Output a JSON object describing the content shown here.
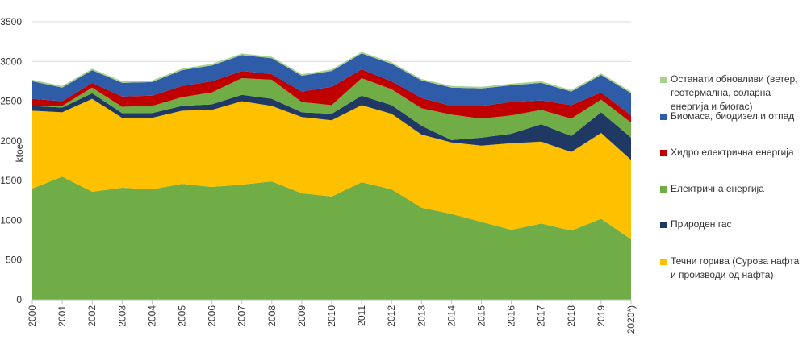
{
  "chart_data": {
    "type": "area",
    "stacked": true,
    "ylabel": "ktoe",
    "ylim": [
      0,
      3500
    ],
    "yticks": [
      0,
      500,
      1000,
      1500,
      2000,
      2500,
      3000,
      3500
    ],
    "grid": true,
    "legend_position": "right",
    "categories": [
      "2000",
      "2001",
      "2002",
      "2003",
      "2004",
      "2005",
      "2006",
      "2007",
      "2008",
      "2009",
      "2010",
      "2011",
      "2012",
      "2013",
      "2014",
      "2015",
      "2016",
      "2017",
      "2018",
      "2019",
      "2020*)"
    ],
    "series": [
      {
        "name": "",
        "color": "#70ad47",
        "values": [
          1400,
          1550,
          1360,
          1410,
          1390,
          1460,
          1420,
          1450,
          1490,
          1340,
          1300,
          1480,
          1390,
          1160,
          1080,
          980,
          880,
          960,
          870,
          1020,
          760
        ]
      },
      {
        "name": "Течни горива (Сурова нафта и производи од нафта)",
        "color": "#ffc000",
        "values": [
          980,
          810,
          1170,
          880,
          900,
          920,
          970,
          1050,
          950,
          960,
          960,
          970,
          950,
          920,
          900,
          960,
          1090,
          1030,
          990,
          1080,
          1000
        ]
      },
      {
        "name": "Природен гас",
        "color": "#1f3864",
        "values": [
          60,
          60,
          70,
          60,
          60,
          60,
          70,
          80,
          90,
          60,
          80,
          120,
          110,
          110,
          30,
          100,
          120,
          220,
          200,
          260,
          280
        ]
      },
      {
        "name": "Електрична енергија",
        "color": "#70ad47",
        "values": [
          0,
          20,
          70,
          80,
          90,
          110,
          150,
          210,
          240,
          130,
          110,
          220,
          200,
          220,
          320,
          240,
          230,
          180,
          220,
          160,
          190
        ]
      },
      {
        "name": "Хидро електрична енергија",
        "color": "#c00000",
        "values": [
          90,
          60,
          60,
          130,
          130,
          140,
          140,
          90,
          70,
          130,
          230,
          110,
          100,
          130,
          110,
          160,
          170,
          120,
          170,
          90,
          90
        ]
      },
      {
        "name": "Биомаса, биодизел и отпад",
        "color": "#2e5ca8",
        "values": [
          220,
          170,
          160,
          170,
          170,
          200,
          200,
          200,
          200,
          200,
          200,
          200,
          220,
          220,
          230,
          220,
          210,
          220,
          170,
          220,
          280
        ]
      },
      {
        "name": "Останати обновливи (ветер, геотермална, соларна енергија и биогас)",
        "color": "#a9d18e",
        "values": [
          20,
          20,
          20,
          20,
          20,
          20,
          20,
          20,
          20,
          20,
          20,
          20,
          20,
          20,
          20,
          20,
          20,
          20,
          20,
          20,
          20
        ]
      }
    ]
  }
}
